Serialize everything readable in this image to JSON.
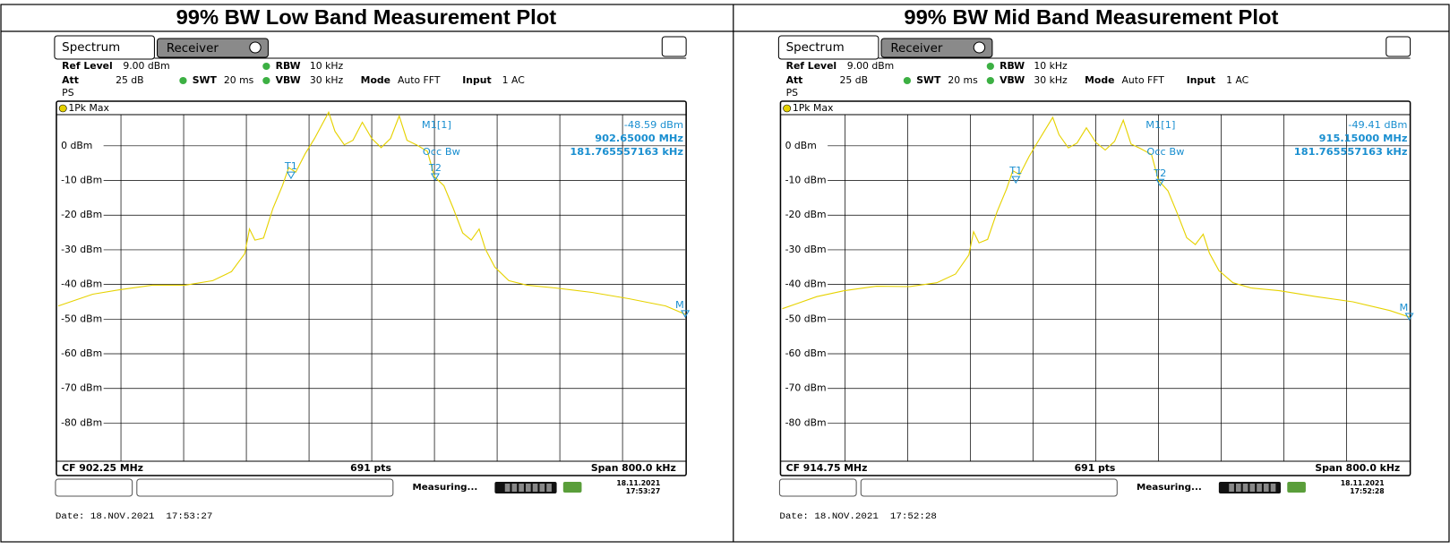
{
  "panels": [
    {
      "title": "99% BW Low Band Measurement Plot",
      "tabs": [
        "Spectrum",
        "Receiver"
      ],
      "settings": {
        "ref_level": {
          "label": "Ref Level",
          "value": "9.00 dBm"
        },
        "att": {
          "label": "Att",
          "value": "25 dB"
        },
        "swt": {
          "label": "SWT",
          "value": "20 ms"
        },
        "rbw": {
          "label": "RBW",
          "value": "10 kHz"
        },
        "vbw": {
          "label": "VBW",
          "value": "30 kHz"
        },
        "mode": {
          "label": "Mode",
          "value": "Auto FFT"
        },
        "input": {
          "label": "Input",
          "value": "1 AC"
        },
        "ps": "PS"
      },
      "marker_readout": {
        "name": "M1[1]",
        "level": "-48.59 dBm",
        "freq": "902.65000 MHz",
        "occ_label": "Occ Bw",
        "occ_value": "181.765557163 kHz"
      },
      "footer": {
        "cf": "CF 902.25 MHz",
        "points": "691 pts",
        "span": "Span 800.0 kHz"
      },
      "status": {
        "measuring": "Measuring...",
        "date": "18.11.2021",
        "time": "17:53:27"
      },
      "date_line": "Date: 18.NOV.2021  17:53:27",
      "chart": {
        "type": "line",
        "xlim": [
          901.85,
          902.65
        ],
        "xticks": [
          901.93,
          902.01,
          902.09,
          902.17,
          902.25,
          902.33,
          902.41,
          902.49,
          902.57
        ],
        "ylim": [
          -91,
          9
        ],
        "yticks": [
          {
            "value": 0,
            "label": "0 dBm"
          },
          {
            "value": -10,
            "label": "-10 dBm"
          },
          {
            "value": -20,
            "label": "-20 dBm"
          },
          {
            "value": -30,
            "label": "-30 dBm"
          },
          {
            "value": -40,
            "label": "-40 dBm"
          },
          {
            "value": -50,
            "label": "-50 dBm"
          },
          {
            "value": -60,
            "label": "-60 dBm"
          },
          {
            "value": -70,
            "label": "-70 dBm"
          },
          {
            "value": -80,
            "label": "-80 dBm"
          }
        ],
        "grid": true,
        "series": [
          {
            "name": "1Pk Max",
            "color": "#e6d200",
            "x": [
              901.85,
              901.894,
              901.929,
              901.97,
              902.012,
              902.047,
              902.071,
              902.088,
              902.094,
              902.101,
              902.112,
              902.124,
              902.136,
              902.144,
              902.153,
              902.165,
              902.177,
              902.195,
              902.203,
              902.215,
              902.226,
              902.238,
              902.25,
              902.262,
              902.274,
              902.285,
              902.295,
              902.307,
              902.321,
              902.33,
              902.342,
              902.354,
              902.366,
              902.377,
              902.387,
              902.395,
              902.407,
              902.425,
              902.448,
              902.484,
              902.531,
              902.578,
              902.625,
              902.65
            ],
            "values": [
              -46.2,
              -42.8,
              -41.5,
              -40.2,
              -40.2,
              -38.9,
              -36.3,
              -31.1,
              -24,
              -27.2,
              -26.6,
              -18,
              -11.5,
              -6.3,
              -7.6,
              -2.3,
              2.1,
              9.7,
              4.2,
              0.3,
              1.6,
              6.8,
              2.1,
              -0.5,
              2.1,
              8.6,
              1.6,
              0.3,
              -1.6,
              -8.9,
              -11.5,
              -18,
              -25.1,
              -27.2,
              -24,
              -29.8,
              -35,
              -38.9,
              -40.2,
              -41,
              -42.3,
              -44.1,
              -46.2,
              -48.59
            ]
          }
        ],
        "markers": [
          {
            "label": "T1",
            "x": 902.147,
            "value": -8.6
          },
          {
            "label": "T2",
            "x": 902.331,
            "value": -9.1
          },
          {
            "label": "M",
            "x": 902.65,
            "value": -48.59
          }
        ]
      }
    },
    {
      "title": "99% BW Mid Band Measurement Plot",
      "tabs": [
        "Spectrum",
        "Receiver"
      ],
      "settings": {
        "ref_level": {
          "label": "Ref Level",
          "value": "9.00 dBm"
        },
        "att": {
          "label": "Att",
          "value": "25 dB"
        },
        "swt": {
          "label": "SWT",
          "value": "20 ms"
        },
        "rbw": {
          "label": "RBW",
          "value": "10 kHz"
        },
        "vbw": {
          "label": "VBW",
          "value": "30 kHz"
        },
        "mode": {
          "label": "Mode",
          "value": "Auto FFT"
        },
        "input": {
          "label": "Input",
          "value": "1 AC"
        },
        "ps": "PS"
      },
      "marker_readout": {
        "name": "M1[1]",
        "level": "-49.41 dBm",
        "freq": "915.15000 MHz",
        "occ_label": "Occ Bw",
        "occ_value": "181.765557163 kHz"
      },
      "footer": {
        "cf": "CF 914.75 MHz",
        "points": "691 pts",
        "span": "Span 800.0 kHz"
      },
      "status": {
        "measuring": "Measuring...",
        "date": "18.11.2021",
        "time": "17:52:28"
      },
      "date_line": "Date: 18.NOV.2021  17:52:28",
      "chart": {
        "type": "line",
        "xlim": [
          914.35,
          915.15
        ],
        "xticks": [
          914.43,
          914.51,
          914.59,
          914.67,
          914.75,
          914.83,
          914.91,
          914.99,
          915.07
        ],
        "ylim": [
          -91,
          9
        ],
        "yticks": [
          {
            "value": 0,
            "label": "0 dBm"
          },
          {
            "value": -10,
            "label": "-10 dBm"
          },
          {
            "value": -20,
            "label": "-20 dBm"
          },
          {
            "value": -30,
            "label": "-30 dBm"
          },
          {
            "value": -40,
            "label": "-40 dBm"
          },
          {
            "value": -50,
            "label": "-50 dBm"
          },
          {
            "value": -60,
            "label": "-60 dBm"
          },
          {
            "value": -70,
            "label": "-70 dBm"
          },
          {
            "value": -80,
            "label": "-80 dBm"
          }
        ],
        "grid": true,
        "series": [
          {
            "name": "1Pk Max",
            "color": "#e6d200",
            "x": [
              914.35,
              914.394,
              914.429,
              914.47,
              914.512,
              914.547,
              914.571,
              914.588,
              914.594,
              914.601,
              914.612,
              914.624,
              914.636,
              914.644,
              914.653,
              914.665,
              914.677,
              914.695,
              914.703,
              914.715,
              914.726,
              914.738,
              914.75,
              914.762,
              914.774,
              914.785,
              914.795,
              914.807,
              914.821,
              914.83,
              914.842,
              914.854,
              914.866,
              914.877,
              914.887,
              914.895,
              914.907,
              914.925,
              914.948,
              914.984,
              915.031,
              915.078,
              915.125,
              915.15
            ],
            "values": [
              -47,
              -43.5,
              -41.8,
              -40.5,
              -40.6,
              -39.5,
              -37,
              -31.5,
              -24.8,
              -28,
              -27,
              -19,
              -12.5,
              -7.2,
              -8.3,
              -3,
              1.5,
              8.2,
              3.2,
              -0.6,
              0.8,
              5.2,
              1,
              -1.2,
              1.3,
              7.4,
              0.5,
              -0.8,
              -2.5,
              -10,
              -13,
              -19.5,
              -26.5,
              -28.5,
              -25.5,
              -31,
              -36,
              -39.5,
              -41,
              -41.8,
              -43.5,
              -45,
              -47.5,
              -49.41
            ]
          }
        ],
        "markers": [
          {
            "label": "T1",
            "x": 914.648,
            "value": -9.9
          },
          {
            "label": "T2",
            "x": 914.832,
            "value": -10.7
          },
          {
            "label": "M",
            "x": 915.15,
            "value": -49.41
          }
        ]
      }
    }
  ]
}
